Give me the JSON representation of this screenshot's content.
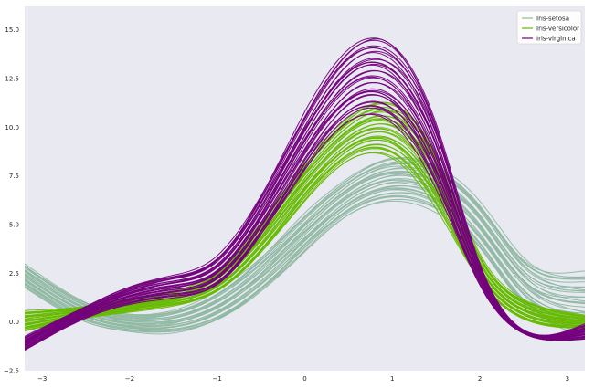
{
  "chart_data": {
    "type": "line",
    "title": "",
    "xlabel": "",
    "ylabel": "",
    "xlim": [
      -3.2,
      3.2
    ],
    "ylim": [
      -2.5,
      16.2
    ],
    "x_ticks": [
      -3,
      -2,
      -1,
      0,
      1,
      2,
      3
    ],
    "y_ticks": [
      -2.5,
      0.0,
      2.5,
      5.0,
      7.5,
      10.0,
      12.5,
      15.0
    ],
    "grid": false,
    "background": "#e9e9f1",
    "legend": {
      "placement": "top-right"
    },
    "series": [
      {
        "name": "Iris-setosa",
        "color": "#8fb8a2",
        "x": [
          -3.14,
          -2.5,
          -2.0,
          -1.5,
          -1.0,
          -0.5,
          0.0,
          0.5,
          1.0,
          1.5,
          2.0,
          2.5,
          3.14
        ],
        "y_min": [
          1.6,
          0.0,
          -0.5,
          -0.6,
          0.0,
          1.5,
          3.6,
          5.5,
          6.2,
          5.6,
          3.6,
          0.8,
          -0.6
        ],
        "y_max": [
          2.8,
          1.0,
          0.4,
          0.6,
          1.6,
          3.4,
          5.6,
          7.4,
          8.4,
          8.0,
          6.2,
          3.4,
          2.6
        ]
      },
      {
        "name": "Iris-versicolor",
        "color": "#66bb00",
        "x": [
          -3.14,
          -2.5,
          -2.0,
          -1.5,
          -1.0,
          -0.5,
          0.0,
          0.5,
          1.0,
          1.5,
          2.0,
          2.5,
          3.14
        ],
        "y_min": [
          -0.4,
          0.2,
          0.5,
          0.8,
          1.5,
          3.5,
          6.2,
          8.3,
          8.4,
          5.8,
          2.0,
          0.1,
          -0.3
        ],
        "y_max": [
          0.6,
          0.8,
          1.2,
          1.6,
          2.6,
          5.2,
          8.2,
          10.5,
          11.2,
          8.6,
          3.5,
          1.2,
          0.4
        ]
      },
      {
        "name": "Iris-virginica",
        "color": "#74007c",
        "x": [
          -3.14,
          -2.5,
          -2.0,
          -1.5,
          -1.0,
          -0.5,
          0.0,
          0.5,
          1.0,
          1.5,
          2.0,
          2.5,
          3.14
        ],
        "y_min": [
          -1.3,
          0.2,
          0.9,
          1.2,
          1.8,
          4.4,
          7.8,
          10.3,
          10.2,
          6.8,
          1.8,
          -0.6,
          -0.9
        ],
        "y_max": [
          -0.6,
          0.8,
          1.8,
          2.4,
          3.4,
          6.6,
          10.8,
          14.0,
          14.2,
          10.2,
          3.0,
          -0.4,
          -0.2
        ]
      }
    ]
  }
}
